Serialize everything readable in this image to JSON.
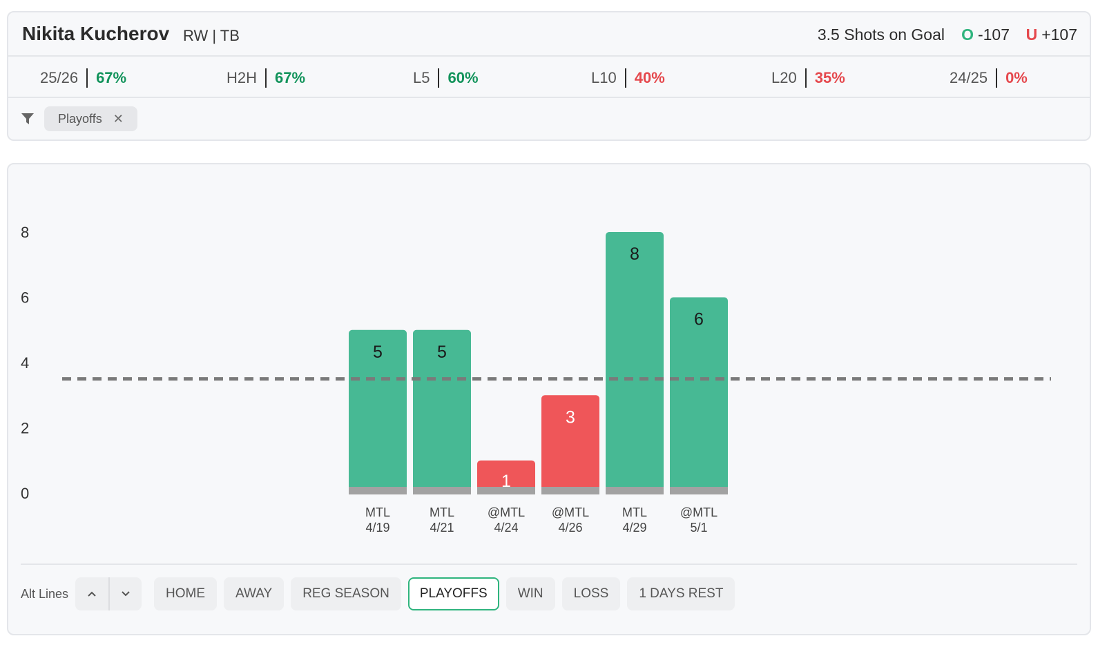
{
  "player": {
    "name": "Nikita Kucherov",
    "position_team": "RW | TB"
  },
  "prop": {
    "line_label": "3.5 Shots on Goal",
    "over": {
      "mark": "O",
      "odds": "-107"
    },
    "under": {
      "mark": "U",
      "odds": "+107"
    }
  },
  "hit_rates": [
    {
      "label": "25/26",
      "value": "67%",
      "status": "good"
    },
    {
      "label": "H2H",
      "value": "67%",
      "status": "good"
    },
    {
      "label": "L5",
      "value": "60%",
      "status": "good"
    },
    {
      "label": "L10",
      "value": "40%",
      "status": "bad"
    },
    {
      "label": "L20",
      "value": "35%",
      "status": "bad"
    },
    {
      "label": "24/25",
      "value": "0%",
      "status": "bad"
    }
  ],
  "active_filter": {
    "label": "Playoffs",
    "remove_icon": "close-icon"
  },
  "filter_icon": "funnel-icon",
  "chart_data": {
    "type": "bar",
    "y_ticks": [
      0,
      2,
      4,
      6,
      8
    ],
    "ylim": [
      0,
      8
    ],
    "line": 3.5,
    "bars": [
      {
        "opponent": "MTL",
        "date": "4/19",
        "value": 5,
        "result": "over"
      },
      {
        "opponent": "MTL",
        "date": "4/21",
        "value": 5,
        "result": "over"
      },
      {
        "opponent": "@MTL",
        "date": "4/24",
        "value": 1,
        "result": "under"
      },
      {
        "opponent": "@MTL",
        "date": "4/26",
        "value": 3,
        "result": "under"
      },
      {
        "opponent": "MTL",
        "date": "4/29",
        "value": 8,
        "result": "over"
      },
      {
        "opponent": "@MTL",
        "date": "5/1",
        "value": 6,
        "result": "over"
      }
    ],
    "colors": {
      "over": "#47b994",
      "under": "#ef5659",
      "base": "#a2a2a2",
      "line": "#7a7a7a"
    }
  },
  "controls": {
    "alt_lines_label": "Alt Lines",
    "up_icon": "chevron-up-icon",
    "down_icon": "chevron-down-icon",
    "filters": [
      {
        "label": "HOME",
        "active": false
      },
      {
        "label": "AWAY",
        "active": false
      },
      {
        "label": "REG SEASON",
        "active": false
      },
      {
        "label": "PLAYOFFS",
        "active": true
      },
      {
        "label": "WIN",
        "active": false
      },
      {
        "label": "LOSS",
        "active": false
      },
      {
        "label": "1 DAYS REST",
        "active": false
      }
    ]
  }
}
